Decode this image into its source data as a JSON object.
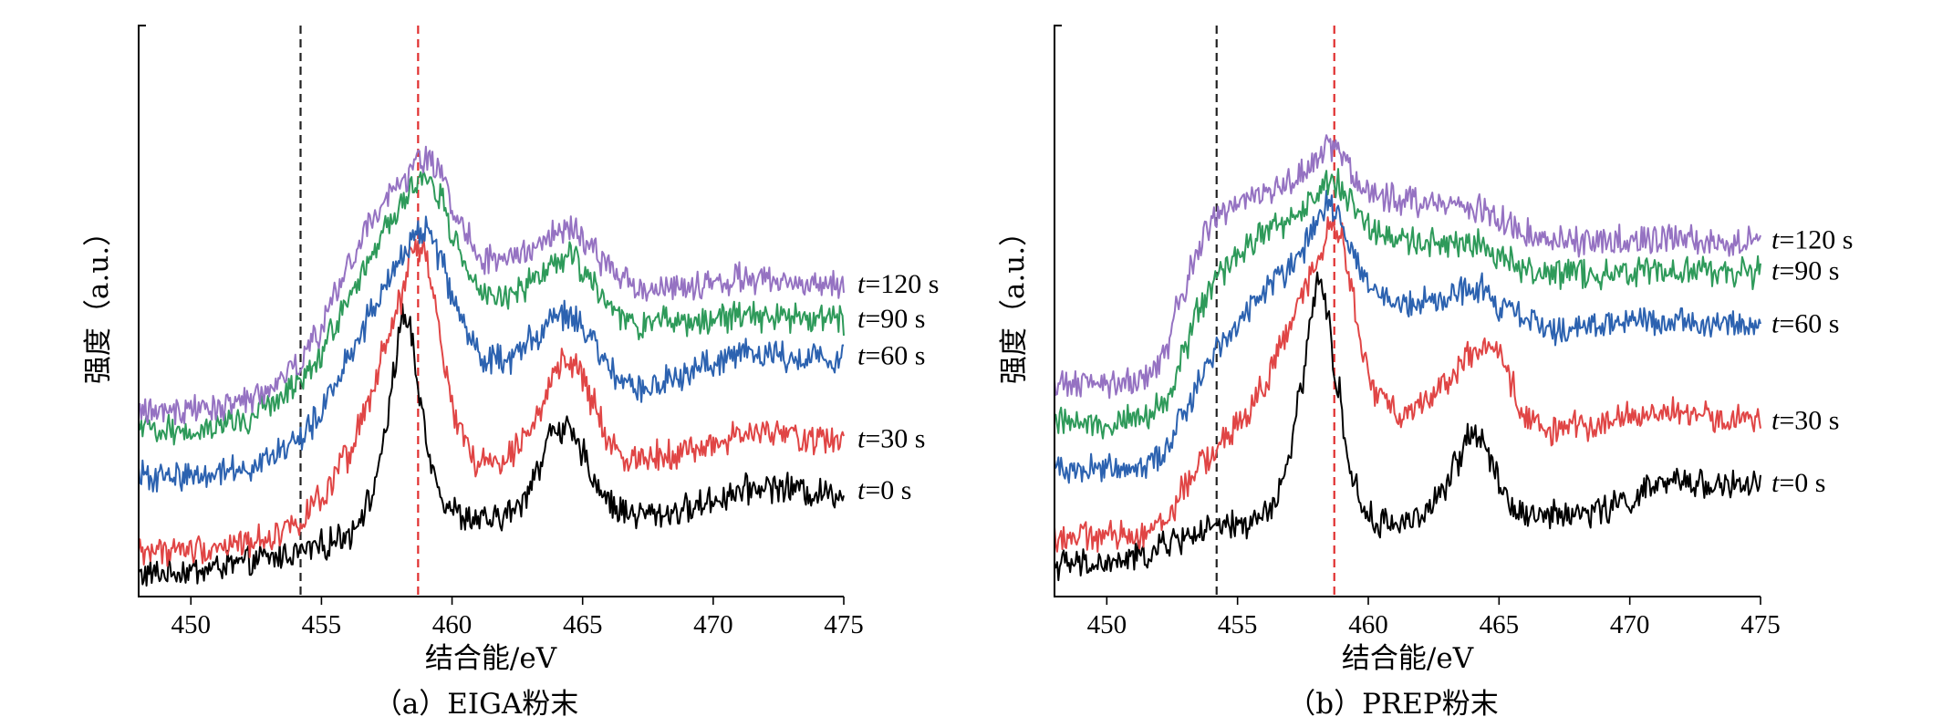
{
  "chart_data": [
    {
      "type": "line",
      "caption": "（a）EIGA粉末",
      "xlabel": "结合能/eV",
      "ylabel": "强度（a.u.）",
      "xlim": [
        448,
        475
      ],
      "xticks": [
        450,
        455,
        460,
        465,
        470,
        475
      ],
      "reference_lines": [
        {
          "x": 454.2,
          "color": "#222222"
        },
        {
          "x": 458.7,
          "color": "#e03030"
        }
      ],
      "series": [
        {
          "label": "t=0 s",
          "label_t": "t",
          "label_rest": "=0 s",
          "color": "#000000",
          "x": [
            448,
            450,
            452,
            453,
            454,
            455,
            456,
            456.8,
            457.4,
            457.8,
            458.1,
            458.4,
            458.8,
            459.3,
            459.8,
            460.5,
            461.5,
            462.5,
            463.3,
            463.9,
            464.4,
            465,
            465.6,
            466.3,
            467,
            468,
            469,
            470,
            471,
            472,
            473,
            474,
            475
          ],
          "y": [
            0.4,
            0.8,
            1.6,
            2.2,
            2.8,
            3.5,
            4.8,
            8,
            14.5,
            23,
            28.5,
            26.5,
            19,
            11.5,
            8,
            6.5,
            6.2,
            7.5,
            12,
            16.5,
            16,
            13.5,
            10,
            7.5,
            7,
            7,
            7.5,
            8.5,
            9.5,
            10,
            9.8,
            9.2,
            9.4
          ]
        },
        {
          "label": "t=30 s",
          "label_t": "t",
          "label_rest": "=30 s",
          "color": "#e04545",
          "x": [
            448,
            450,
            452,
            453,
            454,
            455,
            456,
            456.8,
            457.4,
            458,
            458.5,
            458.9,
            459.3,
            459.8,
            460.3,
            461,
            462,
            463,
            463.8,
            464.3,
            464.8,
            465.4,
            466,
            466.8,
            468,
            469,
            470,
            471,
            472,
            473,
            474,
            475
          ],
          "y": [
            3,
            3.1,
            3.8,
            4.5,
            6,
            8.5,
            13,
            19,
            24.5,
            30,
            35.5,
            36,
            30,
            22,
            16,
            12.5,
            13,
            16.5,
            21,
            23.5,
            23,
            19,
            14.5,
            13,
            13.5,
            13.8,
            14.5,
            15.5,
            15.8,
            15.5,
            15,
            15
          ]
        },
        {
          "label": "t=60 s",
          "label_t": "t",
          "label_rest": "=60 s",
          "color": "#2c62b0",
          "x": [
            448,
            450,
            452,
            453,
            454,
            454.8,
            455.5,
            456.2,
            457,
            457.6,
            458.2,
            458.7,
            459.1,
            459.5,
            460,
            460.6,
            461.3,
            462.3,
            463.3,
            464,
            464.6,
            465.2,
            465.8,
            466.5,
            467.3,
            468.5,
            470,
            471,
            472,
            473,
            474,
            475
          ],
          "y": [
            11,
            11.2,
            12,
            13,
            14.8,
            17,
            21,
            25,
            29,
            32.5,
            35.5,
            37.5,
            37.7,
            35,
            31,
            26.5,
            23.5,
            24,
            26.5,
            28.5,
            28.5,
            26.5,
            23.5,
            21,
            20.5,
            21.5,
            23.5,
            24.5,
            24.2,
            24,
            24,
            24
          ]
        },
        {
          "label": "t=90 s",
          "label_t": "t",
          "label_rest": "=90 s",
          "color": "#2e9a5a",
          "x": [
            448,
            450,
            452,
            453,
            454,
            454.8,
            455.5,
            456.2,
            457,
            457.6,
            458.2,
            458.7,
            459.1,
            459.5,
            460,
            460.6,
            461.3,
            462.3,
            463.3,
            464,
            464.6,
            465.2,
            465.8,
            466.5,
            467.3,
            468.5,
            470,
            471,
            472,
            473,
            474,
            475
          ],
          "y": [
            16,
            16.2,
            17,
            18.5,
            21,
            23.5,
            27.5,
            31.5,
            35.5,
            38.5,
            41,
            43,
            43.4,
            41.5,
            37.5,
            33.5,
            30.5,
            30.5,
            32.5,
            34.5,
            35,
            33,
            30.5,
            28,
            27.5,
            28,
            28.2,
            28.5,
            28.4,
            28.3,
            28.2,
            28
          ]
        },
        {
          "label": "t=120 s",
          "label_t": "t",
          "label_rest": "=120 s",
          "color": "#9572c2",
          "x": [
            448,
            450,
            452,
            453,
            454,
            454.8,
            455.5,
            456.2,
            457,
            457.6,
            458.2,
            458.7,
            459.1,
            459.5,
            460,
            460.6,
            461.3,
            462.3,
            463.3,
            464,
            464.6,
            465.2,
            465.8,
            466.5,
            467.3,
            468.5,
            470,
            471,
            472,
            473,
            474,
            475
          ],
          "y": [
            18,
            18.2,
            19,
            20.5,
            23,
            26,
            30.5,
            35,
            39,
            41.5,
            43.5,
            45.5,
            45.9,
            44,
            40.5,
            37,
            34.5,
            34.5,
            36,
            37.5,
            38,
            36.5,
            34.5,
            32.5,
            31.5,
            31.5,
            32,
            32.5,
            32.5,
            32.3,
            32,
            31.8
          ]
        }
      ]
    },
    {
      "type": "line",
      "caption": "（b）PREP粉末",
      "xlabel": "结合能/eV",
      "ylabel": "强度（a.u.）",
      "xlim": [
        448,
        475
      ],
      "xticks": [
        450,
        455,
        460,
        465,
        470,
        475
      ],
      "reference_lines": [
        {
          "x": 454.2,
          "color": "#222222"
        },
        {
          "x": 458.7,
          "color": "#e03030"
        }
      ],
      "series": [
        {
          "label": "t=0 s",
          "label_t": "t",
          "label_rest": "=0 s",
          "color": "#000000",
          "x": [
            448,
            450,
            451.5,
            452.5,
            453.5,
            454.5,
            455.5,
            456.3,
            456.9,
            457.4,
            457.8,
            458.1,
            458.4,
            458.8,
            459.3,
            459.8,
            460.3,
            461,
            462,
            462.8,
            463.4,
            463.9,
            464.3,
            464.8,
            465.3,
            466,
            467,
            468,
            469,
            470,
            471,
            472,
            473,
            474,
            475
          ],
          "y": [
            1.5,
            1.5,
            2.5,
            4,
            5,
            5.5,
            6,
            7.5,
            12,
            20,
            28,
            32,
            29.5,
            21,
            12,
            7.5,
            6,
            6,
            6.8,
            9,
            12.5,
            16,
            15.5,
            12.5,
            8.5,
            7,
            6.8,
            7,
            7.5,
            8.5,
            10,
            10.5,
            10.3,
            10,
            10.2
          ]
        },
        {
          "label": "t=30 s",
          "label_t": "t",
          "label_rest": "=30 s",
          "color": "#e04545",
          "x": [
            448,
            450,
            451.5,
            452.3,
            453,
            453.8,
            454.5,
            455.3,
            456,
            456.8,
            457.4,
            458,
            458.5,
            458.9,
            459.3,
            459.8,
            460.4,
            461.2,
            462,
            463,
            463.8,
            464.4,
            464.9,
            465.4,
            466,
            467,
            468,
            469,
            470,
            471,
            472,
            473,
            474,
            475
          ],
          "y": [
            4.5,
            4.5,
            5,
            6.5,
            10,
            13,
            15,
            17.5,
            21,
            26,
            30,
            34,
            38.5,
            38,
            32,
            24,
            19.5,
            18,
            19,
            21.5,
            24,
            25,
            24.5,
            21.5,
            17.5,
            16,
            16.5,
            17,
            17.5,
            18,
            18,
            17.5,
            17.2,
            17
          ]
        },
        {
          "label": "t=60 s",
          "label_t": "t",
          "label_rest": "=60 s",
          "color": "#2c62b0",
          "x": [
            448,
            450,
            451.5,
            452.3,
            453,
            453.6,
            454.2,
            455,
            455.8,
            456.6,
            457.3,
            458,
            458.5,
            458.8,
            459.2,
            459.8,
            460.5,
            461.5,
            462.5,
            463.5,
            464.3,
            465,
            466,
            467,
            468,
            469,
            470,
            471,
            472,
            473,
            474,
            475
          ],
          "y": [
            12,
            12,
            12.5,
            14,
            18,
            22,
            25,
            28,
            30.5,
            33,
            35,
            38,
            40.5,
            40,
            36.5,
            33,
            30.5,
            29.5,
            30,
            31,
            31.5,
            29.5,
            28,
            27,
            27.2,
            27.5,
            27.8,
            28,
            28,
            27.8,
            27.6,
            27.5
          ]
        },
        {
          "label": "t=90 s",
          "label_t": "t",
          "label_rest": "=90 s",
          "color": "#2e9a5a",
          "x": [
            448,
            450,
            451.5,
            452.3,
            452.9,
            453.5,
            454.2,
            455,
            455.8,
            456.6,
            457.3,
            458,
            458.5,
            458.8,
            459.2,
            459.8,
            460.5,
            461.5,
            462.5,
            463.5,
            464.3,
            465,
            466,
            467,
            468,
            469,
            470,
            471,
            472,
            473,
            474,
            475
          ],
          "y": [
            17,
            17,
            17.5,
            19,
            24,
            29,
            32.5,
            35,
            37,
            38.5,
            39.5,
            41.5,
            43.5,
            43.2,
            41,
            38.5,
            37,
            36.5,
            36.3,
            36.3,
            36.2,
            35,
            33.5,
            33,
            33,
            33.2,
            33.3,
            33.4,
            33.4,
            33.3,
            33.2,
            33.2
          ]
        },
        {
          "label": "t=120 s",
          "label_t": "t",
          "label_rest": "=120 s",
          "color": "#9572c2",
          "x": [
            448,
            450,
            451.5,
            452.2,
            452.8,
            453.4,
            454.1,
            455,
            455.8,
            456.6,
            457.3,
            458,
            458.5,
            458.8,
            459.2,
            459.8,
            460.5,
            461.5,
            462.5,
            463.5,
            464.3,
            465,
            466,
            467,
            468,
            469,
            470,
            471,
            472,
            473,
            474,
            475
          ],
          "y": [
            21,
            21,
            21.5,
            24,
            30,
            35,
            39,
            40.5,
            41.5,
            42.5,
            43.5,
            45.5,
            47,
            46.5,
            44.5,
            42.5,
            41.5,
            41,
            40.5,
            40.2,
            40,
            39,
            37.5,
            37,
            36.6,
            36.6,
            36.7,
            36.8,
            36.8,
            36.7,
            36.6,
            36.6
          ]
        }
      ]
    }
  ]
}
